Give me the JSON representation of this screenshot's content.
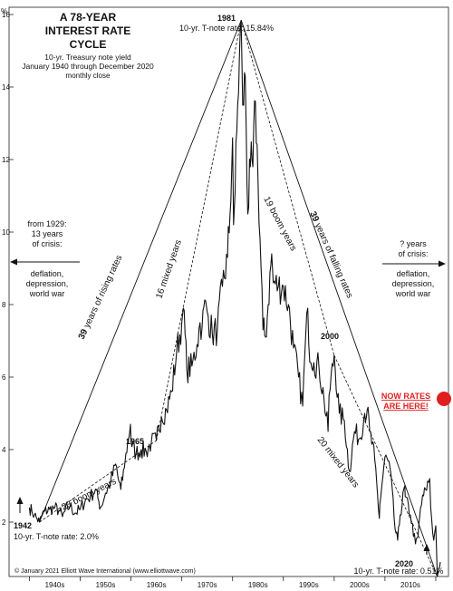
{
  "chart_data": {
    "type": "line",
    "title": "A 78-YEAR INTEREST RATE CYCLE",
    "subtitle": [
      "10-yr. Treasury note yield",
      "January 1940 through December 2020",
      "monthly close"
    ],
    "ylabel": "%",
    "ylim": [
      0.5,
      16.2
    ],
    "xlim": [
      1936,
      2022.5
    ],
    "y_ticks": [
      2,
      4,
      6,
      8,
      10,
      12,
      14,
      16
    ],
    "x_tick_labels": [
      "1940s",
      "1950s",
      "1960s",
      "1970s",
      "1980s",
      "1990s",
      "2000s",
      "2010s"
    ],
    "grid": false,
    "series": [
      {
        "name": "10-yr. Treasury note yield",
        "x": [
          1940,
          1940.5,
          1941,
          1941.5,
          1942,
          1942.5,
          1943,
          1944,
          1945,
          1946,
          1946.5,
          1947,
          1948,
          1949,
          1950,
          1951,
          1952,
          1953,
          1953.5,
          1954,
          1955,
          1956,
          1957,
          1957.5,
          1958,
          1958.7,
          1959,
          1959.9,
          1960,
          1961,
          1962,
          1963,
          1964,
          1965,
          1966,
          1967,
          1968,
          1969,
          1970,
          1970.3,
          1971,
          1972,
          1973,
          1973.6,
          1974,
          1974.7,
          1975,
          1976,
          1977,
          1978,
          1979,
          1979.5,
          1980,
          1980.2,
          1980.5,
          1981,
          1981.7,
          1982,
          1982.5,
          1983,
          1983.5,
          1984,
          1984.5,
          1985,
          1986,
          1986.5,
          1987,
          1987.7,
          1988,
          1989,
          1990,
          1991,
          1992,
          1993,
          1993.8,
          1994,
          1994.8,
          1995,
          1996,
          1997,
          1998,
          1998.8,
          1999,
          2000,
          2001,
          2002,
          2003,
          2004,
          2005,
          2006,
          2006.5,
          2007,
          2008,
          2008.9,
          2009,
          2010,
          2011,
          2012,
          2012.5,
          2013,
          2013.9,
          2014,
          2015,
          2016,
          2016.5,
          2017,
          2018,
          2018.8,
          2019,
          2019.6,
          2020,
          2020.3,
          2020.6,
          2020.9
        ],
        "y": [
          2.4,
          2.3,
          2.2,
          2.1,
          2.0,
          2.2,
          2.3,
          2.35,
          2.4,
          2.3,
          2.15,
          2.3,
          2.45,
          2.25,
          2.35,
          2.6,
          2.7,
          2.9,
          2.65,
          2.4,
          2.8,
          3.1,
          3.6,
          3.2,
          2.9,
          3.5,
          3.9,
          4.7,
          4.2,
          3.9,
          4.0,
          3.95,
          4.2,
          4.25,
          4.9,
          5.1,
          5.6,
          6.7,
          7.5,
          7.9,
          6.2,
          6.3,
          6.9,
          7.5,
          7.4,
          8.1,
          7.8,
          7.2,
          7.3,
          8.5,
          9.3,
          10.5,
          12.6,
          10.2,
          11.1,
          13.5,
          15.84,
          13.5,
          14.3,
          10.5,
          11.8,
          11.8,
          13.6,
          11.5,
          7.3,
          7.1,
          8.0,
          9.4,
          8.6,
          8.5,
          8.5,
          8.0,
          6.8,
          6.0,
          5.2,
          6.0,
          7.9,
          6.9,
          6.4,
          6.3,
          5.4,
          4.5,
          5.5,
          6.6,
          5.0,
          4.8,
          3.4,
          4.5,
          4.3,
          5.0,
          5.1,
          4.5,
          3.7,
          2.1,
          2.5,
          3.8,
          3.5,
          1.8,
          1.5,
          2.2,
          3.0,
          2.7,
          2.2,
          1.4,
          1.6,
          2.4,
          2.9,
          3.2,
          2.4,
          1.5,
          1.9,
          0.5,
          0.7,
          0.9
        ]
      }
    ]
  },
  "peak": {
    "year": "1981",
    "label": "10-yr. T-note rate: 15.84%"
  },
  "low_1942": {
    "year": "1942",
    "label": "10-yr. T-note rate: 2.0%"
  },
  "low_2020": {
    "year": "2020",
    "label": "10-yr. T-note rate: 0.51%"
  },
  "point_labels": {
    "y1965": "1965",
    "y2000": "2000"
  },
  "wave_labels": {
    "rising": {
      "count": "39",
      "text": " years of rising rates"
    },
    "falling": {
      "count": "39",
      "text": " years of falling rates"
    },
    "mixed16": "16 mixed years",
    "boom19": "19 boom years",
    "boom23": "23 boom years",
    "mixed20": "20 mixed years"
  },
  "left_note": {
    "lines": [
      "from 1929:",
      "13 years",
      "of crisis:"
    ],
    "sub": [
      "deflation,",
      "depression,",
      "world war"
    ]
  },
  "right_note": {
    "lines": [
      "? years",
      "of crisis:"
    ],
    "sub": [
      "deflation,",
      "depression,",
      "world war"
    ]
  },
  "now_rates": {
    "lines": [
      "NOW RATES",
      "ARE HERE!"
    ],
    "color": "#e02020"
  },
  "copyright": "© January 2021 Elliott Wave International (www.elliottwave.com)"
}
